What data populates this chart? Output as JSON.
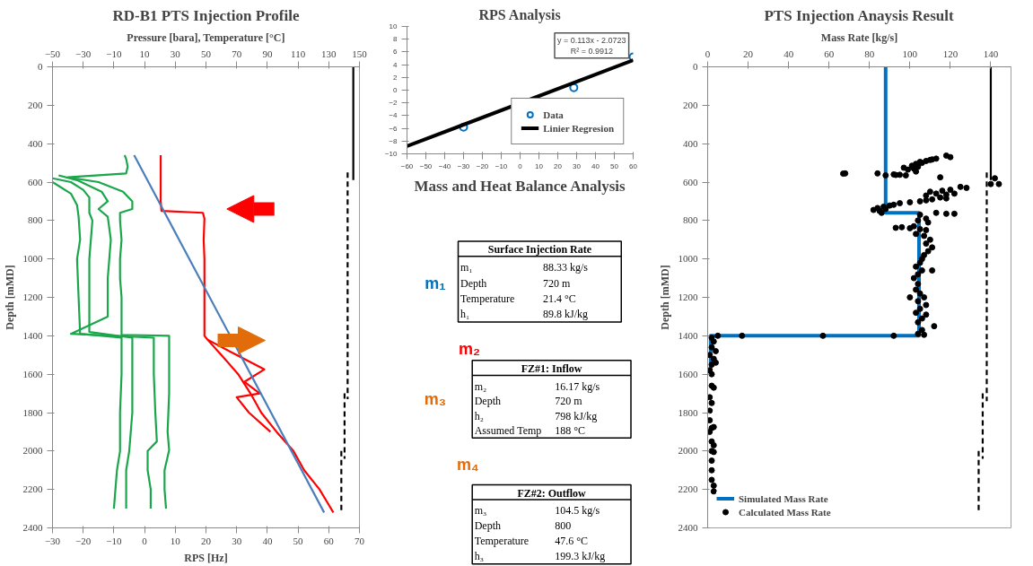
{
  "chart_data": [
    {
      "type": "line",
      "title": "RD-B1 PTS Injection Profile",
      "xlabel": "RPS [Hz]",
      "x2label": "Pressure [bara], Temperature [°C]",
      "ylabel": "Depth [mMD]",
      "xlim": [
        -30,
        70
      ],
      "xticks": [
        -30,
        -20,
        -10,
        0,
        10,
        20,
        30,
        40,
        50,
        60,
        70
      ],
      "x2lim": [
        -50,
        150
      ],
      "x2ticks": [
        -50,
        -30,
        -10,
        10,
        30,
        50,
        70,
        90,
        110,
        130,
        150
      ],
      "ylim": [
        2400,
        0
      ],
      "yticks": [
        0,
        200,
        400,
        600,
        800,
        1000,
        1200,
        1400,
        1600,
        1800,
        2000,
        2200,
        2400
      ],
      "series": [
        {
          "color": "#1aa64a",
          "x": [
            -6.5,
            -6,
            -5.5,
            -6,
            -25,
            -15,
            -7,
            -4,
            -4,
            -8,
            -8,
            -7.5,
            -8,
            -8,
            -7.5,
            -7.5,
            8,
            8,
            8,
            7.5,
            8,
            6.5,
            6.5,
            7
          ],
          "values": [
            460,
            480,
            520,
            555,
            575,
            600,
            650,
            700,
            740,
            760,
            800,
            900,
            1000,
            1100,
            1200,
            1395,
            1400,
            1500,
            1700,
            1900,
            1995,
            2100,
            2200,
            2300
          ]
        },
        {
          "color": "#1aa64a",
          "x": [
            -28,
            -22,
            -18,
            -14,
            -12,
            -15,
            -12,
            -11,
            -12,
            -12,
            -12,
            -24,
            3,
            3,
            3.5,
            4,
            1,
            1,
            2,
            2
          ],
          "values": [
            565,
            590,
            620,
            650,
            700,
            740,
            780,
            900,
            1100,
            1200,
            1300,
            1390,
            1410,
            1600,
            1800,
            1950,
            2000,
            2100,
            2200,
            2300
          ]
        },
        {
          "color": "#1aa64a",
          "x": [
            -30,
            -24,
            -20,
            -18,
            -18,
            -17,
            -18,
            -18,
            -18,
            -18,
            -4,
            -4,
            -4,
            -5,
            -6,
            -6,
            -6
          ],
          "values": [
            580,
            600,
            640,
            680,
            760,
            800,
            1000,
            1080,
            1200,
            1380,
            1410,
            1600,
            1800,
            2000,
            2100,
            2200,
            2300
          ]
        },
        {
          "color": "#1aa64a",
          "x": [
            -30,
            -28,
            -24,
            -22,
            -21.5,
            -21,
            -22,
            -21.5,
            -21,
            -7.5,
            -7.5,
            -8,
            -8,
            -9,
            -9.5,
            -10
          ],
          "values": [
            600,
            620,
            660,
            720,
            780,
            900,
            1000,
            1200,
            1390,
            1410,
            1600,
            1800,
            2000,
            2100,
            2200,
            2300
          ]
        },
        {
          "color": "#ff0000",
          "axis": "x2",
          "x": [
            20.5,
            20.5,
            20.5,
            21,
            48,
            49,
            48.5,
            49,
            49,
            49,
            51,
            60,
            71,
            79,
            86,
            96,
            107,
            114,
            124,
            130,
            133
          ],
          "values": [
            460,
            600,
            700,
            750,
            760,
            790,
            900,
            1000,
            1200,
            1400,
            1420,
            1500,
            1600,
            1700,
            1800,
            1900,
            2000,
            2100,
            2200,
            2280,
            2320
          ]
        },
        {
          "color": "#ff0000",
          "axis": "x2",
          "x": [
            51,
            70,
            88,
            75,
            85,
            70,
            78,
            92
          ],
          "values": [
            1420,
            1500,
            1575,
            1640,
            1700,
            1720,
            1800,
            1900
          ]
        },
        {
          "color": "#4a7ebb",
          "axis": "x2",
          "x": [
            3.2,
            127
          ],
          "values": [
            460,
            2320
          ]
        },
        {
          "color": "#000000",
          "axis": "x2",
          "x": [
            146,
            146
          ],
          "values": [
            0,
            590
          ]
        },
        {
          "color": "#000000",
          "axis": "x2",
          "line_style": "dashed",
          "x": [
            142.3,
            142.3,
            null,
            140.3,
            140.3,
            null,
            138.2,
            138.2
          ],
          "values": [
            550,
            1730,
            null,
            1700,
            2040,
            null,
            2000,
            2320
          ]
        }
      ]
    },
    {
      "type": "scatter",
      "title": "RPS Analysis",
      "xlim": [
        -60,
        60
      ],
      "xticks": [
        -60,
        -50,
        -40,
        -30,
        -20,
        -10,
        0,
        10,
        20,
        30,
        40,
        50,
        60
      ],
      "ylim": [
        -10,
        10
      ],
      "yticks": [
        -10,
        -8,
        -6,
        -4,
        -2,
        0,
        2,
        4,
        6,
        8,
        10
      ],
      "legend": "bottom right",
      "annotations": [
        "y = 0.113x - 2.0723\nR² = 0.9912"
      ],
      "series": [
        {
          "name": "Data",
          "type": "scatter",
          "marker": "circle",
          "color": "#0070c0",
          "x": [
            -30,
            28.5,
            60
          ],
          "values": [
            -5.8,
            0.4,
            5.2
          ]
        },
        {
          "name": "Linier Regresion",
          "type": "line",
          "color": "#000000",
          "x": [
            -60,
            60
          ],
          "values": [
            -8.8,
            4.7
          ]
        }
      ]
    },
    {
      "type": "line",
      "title": "PTS Injection Anaysis Result",
      "xlabel": "Mass Rate [kg/s]",
      "ylabel": "Depth [mMD]",
      "xlim": [
        0,
        150
      ],
      "xticks": [
        0,
        20,
        40,
        60,
        80,
        100,
        120,
        140
      ],
      "ylim": [
        2400,
        0
      ],
      "yticks": [
        0,
        200,
        400,
        600,
        800,
        1000,
        1200,
        1400,
        1600,
        1800,
        2000,
        2200,
        2400
      ],
      "legend": "bottom left",
      "series": [
        {
          "name": "Simulated Mass Rate",
          "color": "#0070c0",
          "x": [
            88,
            88,
            104.5,
            104.5,
            1.5,
            1.5
          ],
          "values": [
            0,
            760,
            760,
            1400,
            1400,
            1600
          ]
        },
        {
          "name": "Calculated Mass Rate",
          "type": "scatter",
          "marker": "circle",
          "color": "#000000",
          "x": [
            118,
            120,
            113,
            110,
            108,
            105,
            103,
            101,
            104,
            102,
            99,
            103,
            106,
            111,
            97,
            68,
            67,
            84,
            92,
            95,
            98,
            93,
            88,
            115,
            142,
            144,
            140,
            125,
            128,
            120,
            116,
            110,
            113,
            118,
            108,
            122,
            115,
            111,
            105,
            108,
            118,
            100,
            95,
            92,
            90,
            87,
            84,
            82,
            85,
            88,
            86,
            113,
            118,
            122,
            105,
            108,
            104,
            109,
            102,
            96,
            93,
            100,
            105,
            108,
            103,
            107,
            110,
            108,
            111,
            109,
            107,
            106,
            105,
            103,
            106,
            111,
            104,
            102,
            104,
            103,
            105,
            100,
            107,
            104,
            108,
            105,
            103,
            108,
            106,
            104,
            112,
            106,
            104,
            107,
            17,
            57,
            92,
            5,
            2,
            3,
            2,
            4,
            1,
            3,
            2,
            4,
            1,
            2,
            2,
            3,
            1,
            2,
            1,
            1,
            2,
            3,
            1,
            2,
            3,
            2,
            3,
            2,
            2,
            2,
            3,
            3
          ],
          "values": [
            462,
            470,
            478,
            485,
            490,
            495,
            505,
            515,
            520,
            530,
            535,
            545,
            500,
            482,
            525,
            555,
            556,
            555,
            560,
            562,
            565,
            563,
            565,
            575,
            580,
            610,
            610,
            625,
            630,
            640,
            645,
            650,
            660,
            665,
            670,
            660,
            680,
            690,
            700,
            695,
            685,
            705,
            710,
            718,
            722,
            728,
            735,
            745,
            750,
            740,
            760,
            760,
            765,
            765,
            770,
            790,
            800,
            810,
            830,
            835,
            838,
            840,
            845,
            850,
            870,
            880,
            900,
            920,
            940,
            960,
            980,
            1000,
            1020,
            1040,
            1060,
            1060,
            1080,
            1100,
            1130,
            1160,
            1180,
            1200,
            1200,
            1220,
            1240,
            1260,
            1280,
            1290,
            1310,
            1330,
            1350,
            1370,
            1390,
            1395,
            1400,
            1400,
            1400,
            1400,
            1410,
            1430,
            1460,
            1480,
            1500,
            1520,
            1550,
            1540,
            1580,
            1600,
            1660,
            1670,
            1720,
            1750,
            1790,
            1840,
            1880,
            1875,
            1900,
            1950,
            1970,
            2000,
            2005,
            2050,
            2100,
            2150,
            2180,
            2210
          ]
        },
        {
          "color": "#000000",
          "x": [
            140,
            140
          ],
          "values": [
            0,
            590
          ]
        },
        {
          "color": "#000000",
          "line_style": "dashed",
          "x": [
            138,
            138,
            null,
            136,
            136,
            null,
            134,
            134
          ],
          "values": [
            550,
            1740,
            null,
            1700,
            2040,
            null,
            2000,
            2320
          ]
        }
      ]
    },
    {
      "type": "other",
      "title": "Mass and Heat Balance Analysis",
      "annotations": [
        "m₁",
        "m₂",
        "m₃",
        "m₄",
        "Surface Injection Rate",
        "m₁",
        "88.33 kg/s",
        "Depth",
        "720 m",
        "Temperature",
        "21.4 °C",
        "h₁",
        "89.8 kJ/kg",
        "FZ#1: Inflow",
        "m₂",
        "16.17 kg/s",
        "Depth",
        "720 m",
        "h₂",
        "798 kJ/kg",
        "Assumed Temp",
        "188 °C",
        "FZ#2: Outflow",
        "m₃",
        "104.5 kg/s",
        "Depth",
        "800",
        "Temperature",
        "47.6 °C",
        "h₃",
        "199.3 kJ/kg"
      ]
    }
  ]
}
